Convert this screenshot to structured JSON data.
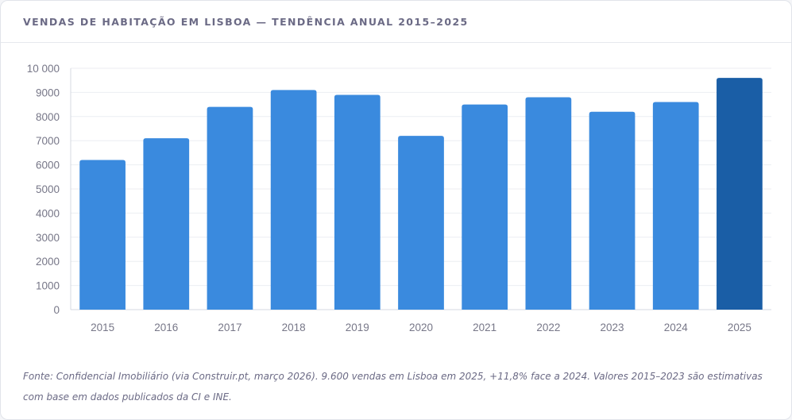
{
  "card": {
    "title": "VENDAS DE HABITAÇÃO EM LISBOA — TENDÊNCIA ANUAL 2015–2025",
    "source_note": "Fonte: Confidencial Imobiliário (via Construir.pt, março 2026). 9.600 vendas em Lisboa em 2025, +11,8% face a 2024. Valores 2015–2023 são estimativas com base em dados publicados da CI e INE."
  },
  "colors": {
    "bar": "#3a8ade",
    "highlight_bar": "#1a5ea6",
    "grid": "#eceef2",
    "tick_text": "#777788"
  },
  "chart_data": {
    "type": "bar",
    "title": "VENDAS DE HABITAÇÃO EM LISBOA — TENDÊNCIA ANUAL 2015–2025",
    "xlabel": "",
    "ylabel": "",
    "categories": [
      "2015",
      "2016",
      "2017",
      "2018",
      "2019",
      "2020",
      "2021",
      "2022",
      "2023",
      "2024",
      "2025"
    ],
    "values": [
      6200,
      7100,
      8400,
      9100,
      8900,
      7200,
      8500,
      8800,
      8200,
      8600,
      9600
    ],
    "highlight_category": "2025",
    "ylim": [
      0,
      10000
    ],
    "yticks": [
      0,
      1000,
      2000,
      3000,
      4000,
      5000,
      6000,
      7000,
      8000,
      9000,
      10000
    ],
    "ytick_labels": [
      "0",
      "1000",
      "2000",
      "3000",
      "4000",
      "5000",
      "6000",
      "7000",
      "8000",
      "9000",
      "10 000"
    ],
    "grid": true,
    "legend": "none"
  }
}
